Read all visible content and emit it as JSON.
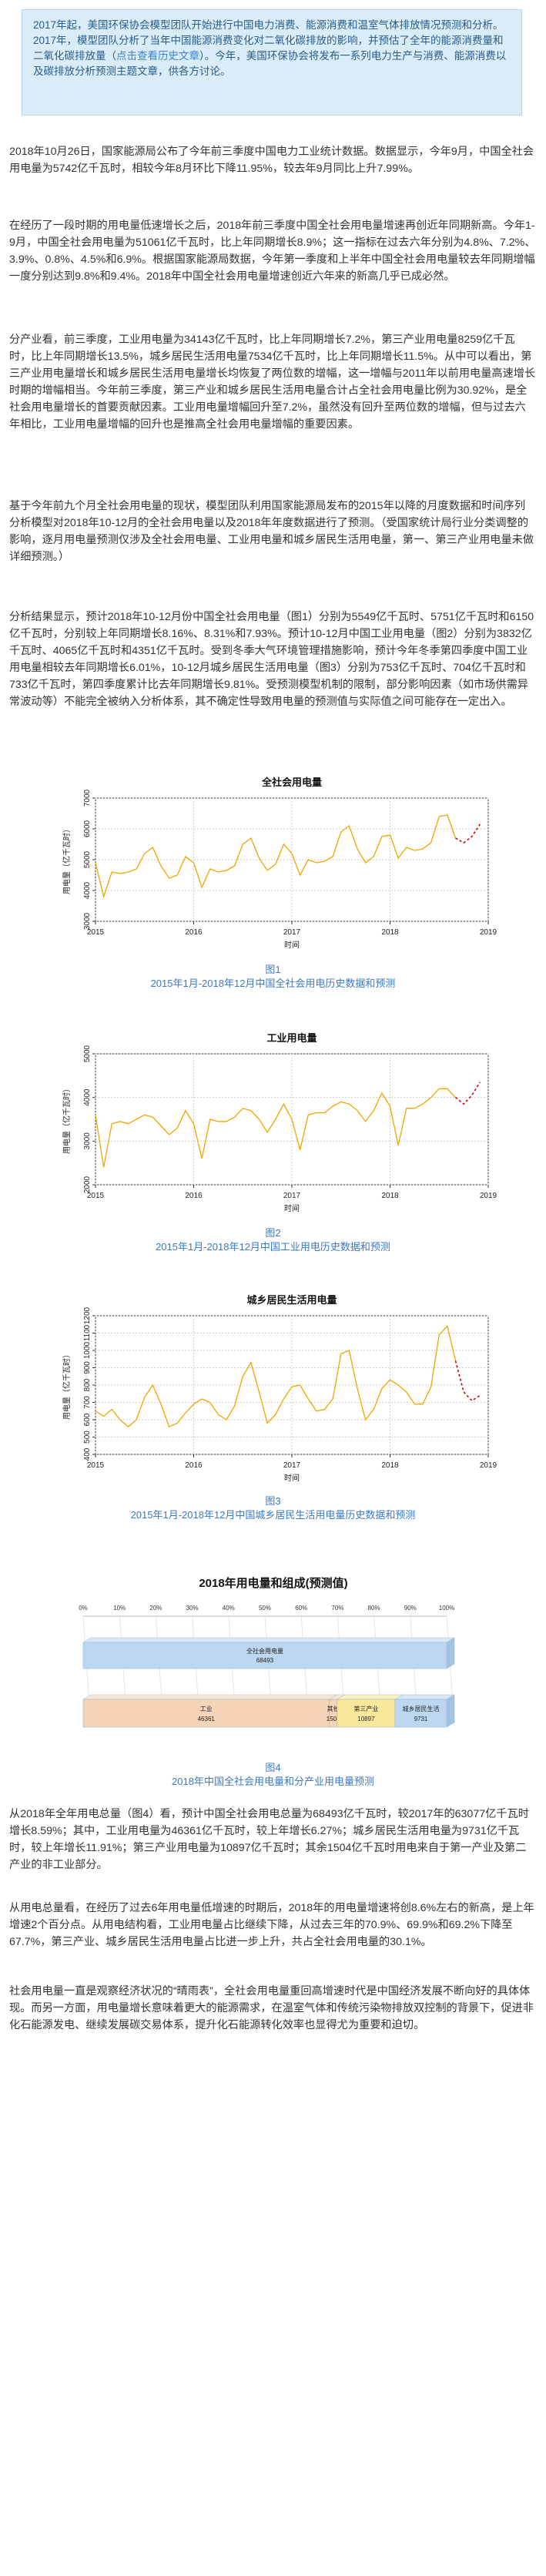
{
  "intro": {
    "text_before_link": "2017年起，美国环保协会模型团队开始进行中国电力消费、能源消费和温室气体排放情况预测和分析。2017年，模型团队分析了当年中国能源消费变化对二氧化碳排放的影响，并预估了全年的能源消费量和二氧化碳排放量（",
    "link_text": "点击查看历史文章",
    "text_after_link": "）。今年，美国环保协会将发布一系列电力生产与消费、能源消费以及碳排放分析预测主题文章，供各方讨论。"
  },
  "paragraphs": [
    "2018年10月26日，国家能源局公布了今年前三季度中国电力工业统计数据。数据显示，今年9月，中国全社会用电量为5742亿千瓦时，相较今年8月环比下降11.95%，较去年9月同比上升7.99%。",
    "在经历了一段时期的用电量低速增长之后，2018年前三季度中国全社会用电量增速再创近年同期新高。今年1-9月，中国全社会用电量为51061亿千瓦时，比上年同期增长8.9%；这一指标在过去六年分别为4.8%、7.2%、3.9%、0.8%、4.5%和6.9%。根据国家能源局数据，今年第一季度和上半年中国全社会用电量较去年同期增幅一度分别达到9.8%和9.4%。2018年中国全社会用电量增速创近六年来的新高几乎已成必然。",
    "分产业看，前三季度，工业用电量为34143亿千瓦时，比上年同期增长7.2%，第三产业用电量8259亿千瓦时，比上年同期增长13.5%，城乡居民生活用电量7534亿千瓦时，比上年同期增长11.5%。从中可以看出，第三产业用电量增长和城乡居民生活用电量增长均恢复了两位数的增幅，这一增幅与2011年以前用电量高速增长时期的增幅相当。今年前三季度，第三产业和城乡居民生活用电量合计占全社会用电量比例为30.92%，是全社会用电量增长的首要贡献因素。工业用电量增幅回升至7.2%，虽然没有回升至两位数的增幅，但与过去六年相比，工业用电量增幅的回升也是推高全社会用电量增幅的重要因素。",
    "基于今年前九个月全社会用电量的现状，模型团队利用国家能源局发布的2015年以降的月度数据和时间序列分析模型对2018年10-12月的全社会用电量以及2018年年度数据进行了预测。（受国家统计局行业分类调整的影响，逐月用电量预测仅涉及全社会用电量、工业用电量和城乡居民生活用电量，第一、第三产业用电量未做详细预测。）",
    "分析结果显示，预计2018年10-12月份中国全社会用电量（图1）分别为5549亿千瓦时、5751亿千瓦时和6150亿千瓦时，分别较上年同期增长8.16%、8.31%和7.93%。预计10-12月中国工业用电量（图2）分别为3832亿千瓦时、4065亿千瓦时和4351亿千瓦时。受到冬季大气环境管理措施影响，预计今年冬季第四季度中国工业用电量相较去年同期增长6.01%，10-12月城乡居民生活用电量（图3）分别为753亿千瓦时、704亿千瓦时和733亿千瓦时，第四季度累计比去年同期增长9.81%。受预测模型机制的限制，部分影响因素（如市场供需异常波动等）不能完全被纳入分析体系，其不确定性导致用电量的预测值与实际值之间可能存在一定出入。",
    "从2018年全年用电总量（图4）看，预计中国全社会用电总量为68493亿千瓦时，较2017年的63077亿千瓦时增长8.59%；其中，工业用电量为46361亿千瓦时，较上年增长6.27%；城乡居民生活用电量为9731亿千瓦时，较上年增长11.91%；第三产业用电量为10897亿千瓦时；其余1504亿千瓦时用电来自于第一产业及第二产业的非工业部分。",
    "从用电总量看，在经历了过去6年用电量低增速的时期后，2018年的用电量增速将创8.6%左右的新高，是上年增速2个百分点。从用电结构看，工业用电量占比继续下降，从过去三年的70.9%、69.9%和69.2%下降至67.7%，第三产业、城乡居民生活用电量占比进一步上升，共占全社会用电量的30.1%。",
    "社会用电量一直是观察经济状况的“晴雨表”，全社会用电量重回高增速时代是中国经济发展不断向好的具体体现。而另一方面，用电量增长意味着更大的能源需求，在温室气体和传统污染物排放双控制的背景下，促进非化石能源发电、继续发展碳交易体系，提升化石能源转化效率也显得尤为重要和迫切。"
  ],
  "charts": [
    {
      "title": "全社会用电量",
      "ylabel": "用电量（亿千瓦时）",
      "xlabel": "时间",
      "yticks": [
        "3000",
        "4000",
        "5000",
        "6000",
        "7000"
      ],
      "xticks": [
        "2015",
        "2016",
        "2017",
        "2018",
        "2019"
      ],
      "caption_num": "图1",
      "caption": "2015年1月-2018年12月中国全社会用电历史数据和预测"
    },
    {
      "title": "工业用电量",
      "ylabel": "用电量（亿千瓦时）",
      "xlabel": "时间",
      "yticks": [
        "2000",
        "3000",
        "4000",
        "5000"
      ],
      "xticks": [
        "2015",
        "2016",
        "2017",
        "2018",
        "2019"
      ],
      "caption_num": "图2",
      "caption": "2015年1月-2018年12月中国工业用电历史数据和预测"
    },
    {
      "title": "城乡居民生活用电量",
      "ylabel": "用电量（亿千瓦时）",
      "xlabel": "时间",
      "yticks": [
        "400",
        "500",
        "600",
        "700",
        "800",
        "900",
        "1000",
        "1100",
        "1200"
      ],
      "xticks": [
        "2015",
        "2016",
        "2017",
        "2018",
        "2019"
      ],
      "caption_num": "图3",
      "caption": "2015年1月-2018年12月中国城乡居民生活用电量历史数据和预测"
    }
  ],
  "bar_chart": {
    "title": "2018年用电量和组成(预测值)",
    "pct_ticks": [
      "0%",
      "10%",
      "20%",
      "30%",
      "40%",
      "50%",
      "60%",
      "70%",
      "80%",
      "90%",
      "100%"
    ],
    "total_label": "全社会用电量",
    "total_value": "68493",
    "segments": [
      {
        "label": "工业",
        "value": "46361"
      },
      {
        "label": "其他",
        "value": "1504"
      },
      {
        "label": "第三产业",
        "value": "10897"
      },
      {
        "label": "城乡居民生活",
        "value": "9731"
      }
    ],
    "caption_num": "图4",
    "caption": "2018年中国全社会用电量和分产业用电量预测"
  },
  "chart_data": [
    {
      "type": "line",
      "title": "全社会用电量",
      "xlabel": "时间",
      "ylabel": "用电量（亿千瓦时）",
      "xlim": [
        2015,
        2019
      ],
      "ylim": [
        3000,
        7000
      ],
      "x_start": 2015.0,
      "x_step_per_month": 0.0833,
      "series": [
        {
          "values": [
            4900,
            3800,
            4600,
            4550,
            4600,
            4700,
            5200,
            5400,
            4800,
            4400,
            4500,
            5100,
            4900,
            4100,
            4700,
            4600,
            4650,
            4800,
            5500,
            5700,
            5050,
            4650,
            4850,
            5500,
            5200,
            4500,
            5000,
            4900,
            4950,
            5100,
            5900,
            6100,
            5350,
            4900,
            5100,
            5750,
            5800,
            5050,
            5400,
            5300,
            5350,
            5550,
            6400,
            6450,
            5700,
            5550,
            5750,
            6150
          ]
        }
      ],
      "forecast_start_index": 44
    },
    {
      "type": "line",
      "title": "工业用电量",
      "xlabel": "时间",
      "ylabel": "用电量（亿千瓦时）",
      "xlim": [
        2015,
        2019
      ],
      "ylim": [
        2000,
        5000
      ],
      "series": [
        {
          "values": [
            3600,
            2400,
            3400,
            3450,
            3400,
            3500,
            3600,
            3550,
            3350,
            3150,
            3300,
            3700,
            3400,
            2600,
            3500,
            3450,
            3450,
            3550,
            3750,
            3700,
            3500,
            3200,
            3500,
            3850,
            3500,
            2800,
            3600,
            3650,
            3650,
            3800,
            3900,
            3850,
            3700,
            3450,
            3700,
            4100,
            3800,
            2900,
            3750,
            3750,
            3850,
            4000,
            4200,
            4200,
            4000,
            3850,
            4050,
            4350
          ]
        }
      ],
      "forecast_start_index": 44
    },
    {
      "type": "line",
      "title": "城乡居民生活用电量",
      "xlabel": "时间",
      "ylabel": "用电量（亿千瓦时）",
      "xlim": [
        2015,
        2019
      ],
      "ylim": [
        400,
        1200
      ],
      "series": [
        {
          "values": [
            650,
            620,
            660,
            600,
            560,
            600,
            730,
            800,
            690,
            560,
            580,
            640,
            690,
            720,
            700,
            630,
            600,
            680,
            850,
            930,
            760,
            580,
            630,
            720,
            790,
            800,
            720,
            650,
            660,
            720,
            980,
            1000,
            780,
            600,
            660,
            780,
            830,
            800,
            760,
            690,
            690,
            790,
            1090,
            1140,
            940,
            760,
            710,
            740
          ]
        }
      ],
      "forecast_start_index": 44
    },
    {
      "type": "bar",
      "title": "2018年用电量和组成(预测值)",
      "xlabel": "",
      "ylabel": "",
      "categories": [
        "全社会用电量",
        "工业",
        "其他",
        "第三产业",
        "城乡居民生活"
      ],
      "values": [
        68493,
        46361,
        1504,
        10897,
        9731
      ]
    }
  ]
}
